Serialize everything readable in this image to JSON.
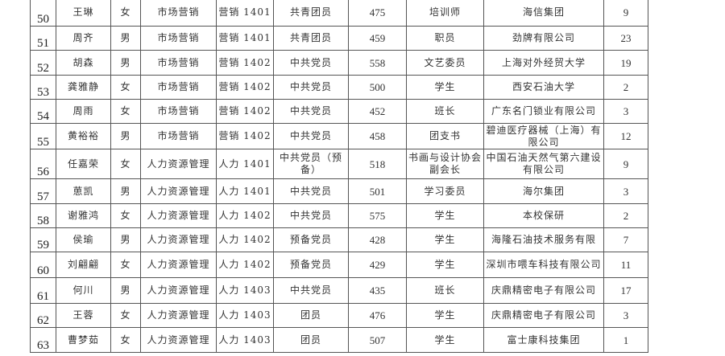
{
  "rows": [
    {
      "no": "50",
      "name": "王琳",
      "gender": "女",
      "major": "市场营销",
      "class": "营销 1401",
      "political": "共青团员",
      "score": "475",
      "position": "培训师",
      "employer": "海信集团",
      "count": "9"
    },
    {
      "no": "51",
      "name": "周齐",
      "gender": "男",
      "major": "市场营销",
      "class": "营销 1401",
      "political": "共青团员",
      "score": "459",
      "position": "职员",
      "employer": "劲牌有限公司",
      "count": "23"
    },
    {
      "no": "52",
      "name": "胡森",
      "gender": "男",
      "major": "市场营销",
      "class": "营销 1402",
      "political": "中共党员",
      "score": "558",
      "position": "文艺委员",
      "employer": "上海对外经贸大学",
      "count": "19"
    },
    {
      "no": "53",
      "name": "龚雅静",
      "gender": "女",
      "major": "市场营销",
      "class": "营销 1402",
      "political": "中共党员",
      "score": "500",
      "position": "学生",
      "employer": "西安石油大学",
      "count": "2"
    },
    {
      "no": "54",
      "name": "周雨",
      "gender": "女",
      "major": "市场营销",
      "class": "营销 1402",
      "political": "中共党员",
      "score": "452",
      "position": "班长",
      "employer": "广东名门锁业有限公司",
      "count": "3"
    },
    {
      "no": "55",
      "name": "黄裕裕",
      "gender": "男",
      "major": "市场营销",
      "class": "营销 1402",
      "political": "中共党员",
      "score": "458",
      "position": "团支书",
      "employer": "碧迪医疗器械（上海）有限公司",
      "count": "12"
    },
    {
      "no": "56",
      "name": "任嘉荣",
      "gender": "女",
      "major": "人力资源管理",
      "class": "人力 1401",
      "political": "中共党员（预备）",
      "score": "518",
      "position": "书画与设计协会副会长",
      "employer": "中国石油天然气第六建设有限公司",
      "count": "9"
    },
    {
      "no": "57",
      "name": "葸凯",
      "gender": "男",
      "major": "人力资源管理",
      "class": "人力 1401",
      "political": "中共党员",
      "score": "501",
      "position": "学习委员",
      "employer": "海尔集团",
      "count": "3"
    },
    {
      "no": "58",
      "name": "谢雅鸿",
      "gender": "女",
      "major": "人力资源管理",
      "class": "人力 1402",
      "political": "中共党员",
      "score": "575",
      "position": "学生",
      "employer": "本校保研",
      "count": "2"
    },
    {
      "no": "59",
      "name": "侯瑜",
      "gender": "男",
      "major": "人力资源管理",
      "class": "人力 1402",
      "political": "预备党员",
      "score": "428",
      "position": "学生",
      "employer": "海隆石油技术服务有限",
      "count": "7"
    },
    {
      "no": "60",
      "name": "刘翩翩",
      "gender": "女",
      "major": "人力资源管理",
      "class": "人力 1402",
      "political": "预备党员",
      "score": "429",
      "position": "学生",
      "employer": "深圳市喂车科技有限公司",
      "count": "11"
    },
    {
      "no": "61",
      "name": "何川",
      "gender": "男",
      "major": "人力资源管理",
      "class": "人力 1403",
      "political": "中共党员",
      "score": "435",
      "position": "班长",
      "employer": "庆鼎精密电子有限公司",
      "count": "17"
    },
    {
      "no": "62",
      "name": "王蓉",
      "gender": "女",
      "major": "人力资源管理",
      "class": "人力 1403",
      "political": "团员",
      "score": "476",
      "position": "学生",
      "employer": "庆鼎精密电子有限公司",
      "count": "3"
    },
    {
      "no": "63",
      "name": "曹梦茹",
      "gender": "女",
      "major": "人力资源管理",
      "class": "人力 1403",
      "political": "团员",
      "score": "507",
      "position": "学生",
      "employer": "富士康科技集团",
      "count": "1"
    }
  ]
}
